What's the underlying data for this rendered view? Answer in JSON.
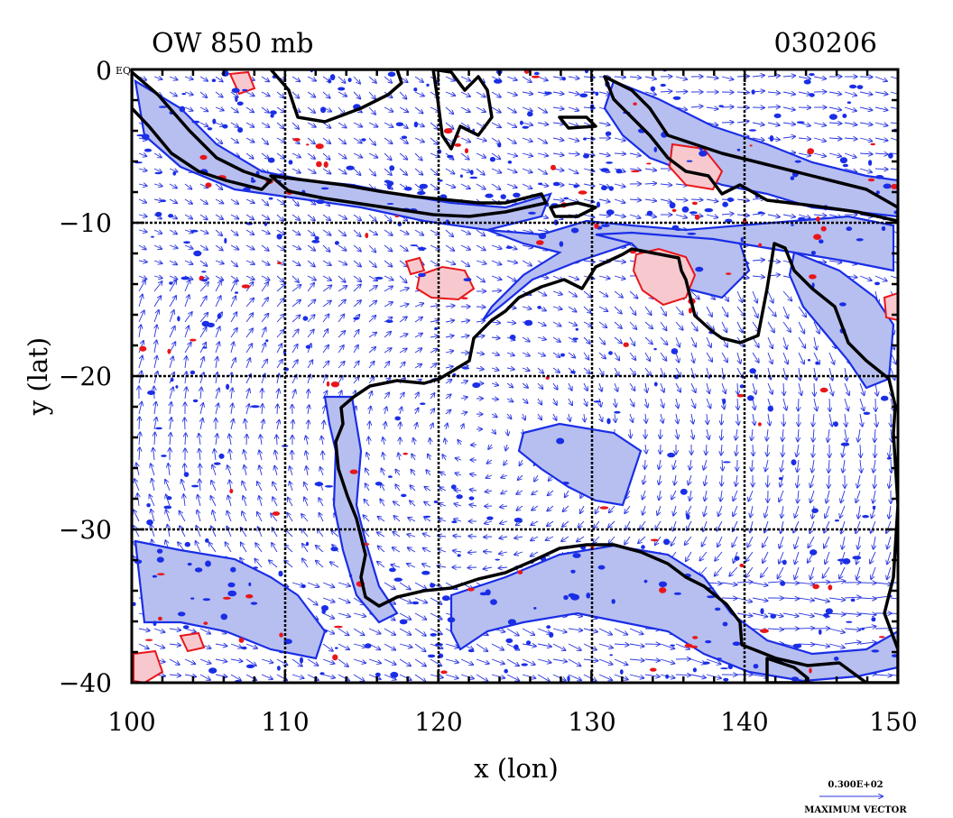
{
  "header": {
    "title_left": "OW 850 mb",
    "title_right": "030206"
  },
  "chart_data": {
    "type": "contour_vector_map",
    "title": "OW 850 mb",
    "date_label": "030206",
    "xlabel": "x (lon)",
    "ylabel": "y (lat)",
    "xlim": [
      100,
      150
    ],
    "ylim": [
      -40,
      0
    ],
    "x_ticks": [
      100,
      110,
      120,
      130,
      140,
      150
    ],
    "y_ticks": [
      0,
      -10,
      -20,
      -30,
      -40
    ],
    "x_tick_labels": [
      "100",
      "110",
      "120",
      "130",
      "140",
      "150"
    ],
    "y_tick_labels": [
      "0",
      "−10",
      "−20",
      "−30",
      "−40"
    ],
    "y_top_suffix": "EQ",
    "grid": true,
    "legend": {
      "max_vector_value": "0.300E+02",
      "max_vector_label": "MAXIMUM VECTOR"
    },
    "colors": {
      "positive_contour": "#1a2ee6",
      "positive_fill": "#b7bff0",
      "negative_contour": "#e8161b",
      "negative_fill": "#f7c9cf",
      "coastline": "#000000",
      "vectors": "#2a35e0"
    }
  }
}
